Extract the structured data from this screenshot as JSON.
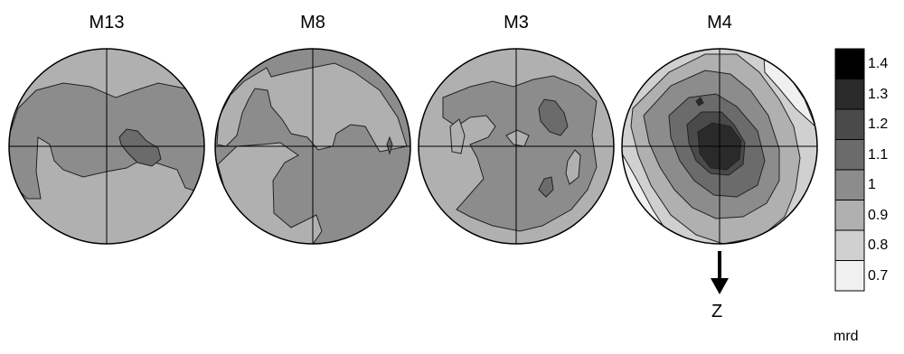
{
  "figure": {
    "plots": [
      {
        "id": "m13",
        "title": "M13"
      },
      {
        "id": "m8",
        "title": "M8"
      },
      {
        "id": "m3",
        "title": "M3"
      },
      {
        "id": "m4",
        "title": "M4"
      }
    ],
    "arrow_label": "Z",
    "legend": {
      "unit": "mrd",
      "levels": [
        "1.4",
        "1.3",
        "1.2",
        "1.1",
        "1",
        "0.9",
        "0.8",
        "0.7"
      ],
      "colors": [
        "#000000",
        "#2a2a2a",
        "#4a4a4a",
        "#6b6b6b",
        "#8c8c8c",
        "#b0b0b0",
        "#d0d0d0",
        "#f0f0f0"
      ]
    },
    "palette": {
      "level_09": "#b0b0b0",
      "level_10": "#8c8c8c",
      "level_11": "#6b6b6b",
      "level_12": "#4a4a4a",
      "level_08": "#d0d0d0",
      "level_07": "#f0f0f0"
    }
  }
}
